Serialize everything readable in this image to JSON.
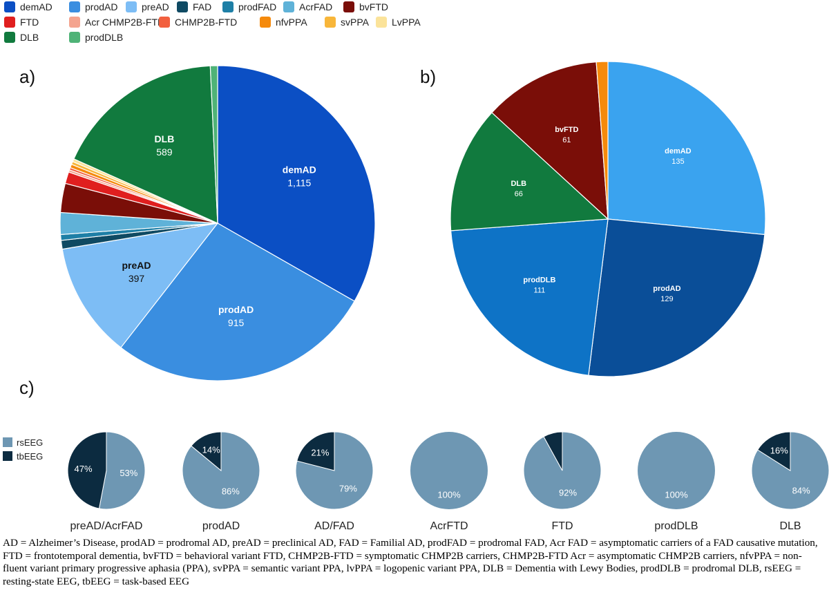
{
  "legend": [
    {
      "label": "demAD",
      "color": "#0b4fc4"
    },
    {
      "label": "prodAD",
      "color": "#3a8ee0"
    },
    {
      "label": "preAD",
      "color": "#7dbdf5"
    },
    {
      "label": "FAD",
      "color": "#0f4a63"
    },
    {
      "label": "prodFAD",
      "color": "#1e7fa6"
    },
    {
      "label": "AcrFAD",
      "color": "#5fb2d8"
    },
    {
      "label": "bvFTD",
      "color": "#7a0e08"
    },
    {
      "label": "FTD",
      "color": "#e01f1f"
    },
    {
      "label": "Acr CHMP2B-FTD",
      "color": "#f4a48f"
    },
    {
      "label": "CHMP2B-FTD",
      "color": "#f2603f"
    },
    {
      "label": "nfvPPA",
      "color": "#f58a0c"
    },
    {
      "label": "svPPA",
      "color": "#f8b63a"
    },
    {
      "label": "LvPPA",
      "color": "#fbe39a"
    },
    {
      "label": "DLB",
      "color": "#117a3e"
    },
    {
      "label": "prodDLB",
      "color": "#4fb377"
    }
  ],
  "panels": {
    "a": "a)",
    "b": "b)",
    "c": "c)"
  },
  "chart_data": [
    {
      "type": "pie",
      "title": "a)",
      "slices": [
        {
          "label": "demAD",
          "value": 1115,
          "display": "1,115",
          "color": "#0b4fc4"
        },
        {
          "label": "prodAD",
          "value": 915,
          "display": "915",
          "color": "#3a8ee0"
        },
        {
          "label": "preAD",
          "value": 397,
          "display": "397",
          "color": "#7dbdf5"
        },
        {
          "label": "FAD",
          "value": 30,
          "color": "#0f4a63"
        },
        {
          "label": "prodFAD",
          "value": 20,
          "color": "#1e7fa6"
        },
        {
          "label": "AcrFAD",
          "value": 75,
          "color": "#5fb2d8"
        },
        {
          "label": "bvFTD",
          "value": 100,
          "color": "#7a0e08"
        },
        {
          "label": "FTD",
          "value": 40,
          "color": "#e01f1f"
        },
        {
          "label": "Acr CHMP2B-FTD",
          "value": 8,
          "color": "#f4a48f"
        },
        {
          "label": "CHMP2B-FTD",
          "value": 8,
          "color": "#f2603f"
        },
        {
          "label": "nfvPPA",
          "value": 12,
          "color": "#f58a0c"
        },
        {
          "label": "svPPA",
          "value": 10,
          "color": "#f8b63a"
        },
        {
          "label": "LvPPA",
          "value": 10,
          "color": "#fbe39a"
        },
        {
          "label": "DLB",
          "value": 589,
          "display": "589",
          "color": "#117a3e"
        },
        {
          "label": "prodDLB",
          "value": 25,
          "color": "#4fb377"
        }
      ]
    },
    {
      "type": "pie",
      "title": "b)",
      "slices": [
        {
          "label": "demAD",
          "value": 135,
          "display": "135",
          "color": "#3aa3ef"
        },
        {
          "label": "prodAD",
          "value": 129,
          "display": "129",
          "color": "#0a4e98"
        },
        {
          "label": "prodDLB",
          "value": 111,
          "display": "111",
          "color": "#0e73c6"
        },
        {
          "label": "DLB",
          "value": 66,
          "display": "66",
          "color": "#117a3e"
        },
        {
          "label": "bvFTD",
          "value": 61,
          "display": "61",
          "color": "#7a0e08"
        },
        {
          "label": "nfvPPA",
          "value": 6,
          "color": "#f58a0c"
        }
      ]
    },
    {
      "type": "pie",
      "title": "c)",
      "legend": [
        {
          "label": "rsEEG",
          "color": "#6e97b3"
        },
        {
          "label": "tbEEG",
          "color": "#0c2b40"
        }
      ],
      "groups": [
        {
          "name": "preAD/AcrFAD",
          "rsEEG": 53,
          "tbEEG": 47,
          "rs_label": "53%",
          "tb_label": "47%"
        },
        {
          "name": "prodAD",
          "rsEEG": 86,
          "tbEEG": 14,
          "rs_label": "86%",
          "tb_label": "14%"
        },
        {
          "name": "AD/FAD",
          "rsEEG": 79,
          "tbEEG": 21,
          "rs_label": "79%",
          "tb_label": "21%"
        },
        {
          "name": "AcrFTD",
          "rsEEG": 100,
          "tbEEG": 0,
          "rs_label": "100%",
          "tb_label": ""
        },
        {
          "name": "FTD",
          "rsEEG": 92,
          "tbEEG": 8,
          "rs_label": "92%",
          "tb_label": ""
        },
        {
          "name": "prodDLB",
          "rsEEG": 100,
          "tbEEG": 0,
          "rs_label": "100%",
          "tb_label": ""
        },
        {
          "name": "DLB",
          "rsEEG": 84,
          "tbEEG": 16,
          "rs_label": "84%",
          "tb_label": "16%"
        }
      ]
    }
  ],
  "caption": "AD = Alzheimer’s Disease, prodAD = prodromal AD, preAD = preclinical AD, FAD = Familial AD, prodFAD = prodromal FAD, Acr FAD = asymptomatic carriers of a FAD causative mutation, FTD = frontotemporal dementia, bvFTD = behavioral variant FTD, CHMP2B-FTD = symptomatic CHMP2B carriers, CHMP2B-FTD Acr = asymptomatic CHMP2B carriers, nfvPPA = non-fluent variant primary progressive aphasia (PPA), svPPA = semantic variant PPA, lvPPA = logopenic variant PPA, DLB = Dementia with Lewy Bodies, prodDLB = prodromal DLB, rsEEG = resting-state EEG, tbEEG = task-based EEG"
}
